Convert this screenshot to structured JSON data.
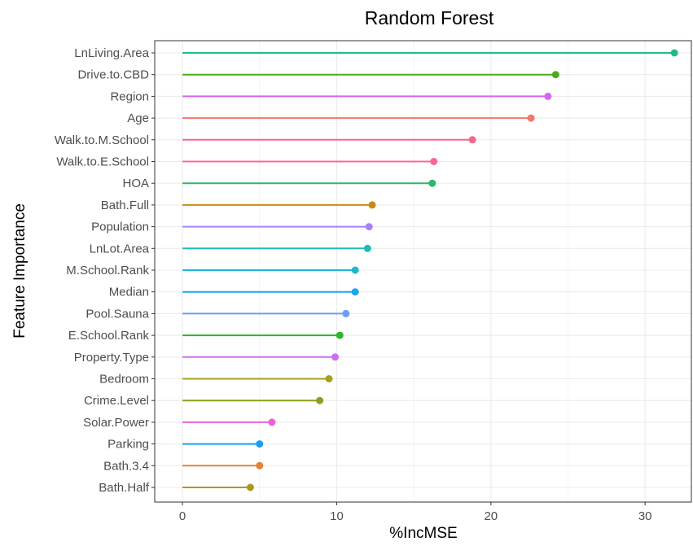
{
  "chart_data": {
    "type": "lollipop",
    "title": "Random Forest",
    "xlabel": "%IncMSE",
    "ylabel": "Feature Importance",
    "xlim": [
      -1.8,
      33.0
    ],
    "xticks": [
      0,
      10,
      20,
      30
    ],
    "grid": true,
    "legend": "none",
    "categories": [
      "LnLiving.Area",
      "Drive.to.CBD",
      "Region",
      "Age",
      "Walk.to.M.School",
      "Walk.to.E.School",
      "HOA",
      "Bath.Full",
      "Population",
      "LnLot.Area",
      "M.School.Rank",
      "Median",
      "Pool.Sauna",
      "E.School.Rank",
      "Property.Type",
      "Bedroom",
      "Crime.Level",
      "Solar.Power",
      "Parking",
      "Bath.3.4",
      "Bath.Half"
    ],
    "values": [
      31.9,
      24.2,
      23.7,
      22.6,
      18.8,
      16.3,
      16.2,
      12.3,
      12.1,
      12.0,
      11.2,
      11.2,
      10.6,
      10.2,
      9.9,
      9.5,
      8.9,
      5.8,
      5.0,
      5.0,
      4.4
    ],
    "colors": [
      "#1fba8a",
      "#4bac1c",
      "#d764f2",
      "#f5766d",
      "#f7658e",
      "#f8659f",
      "#2bb868",
      "#c98a13",
      "#a383ff",
      "#1bbdb7",
      "#1bb8ce",
      "#1ba7f0",
      "#6c9df7",
      "#2cb52e",
      "#cc6ef2",
      "#a5a11d",
      "#919d18",
      "#ef61d8",
      "#1b9ef2",
      "#e48134",
      "#b0971a"
    ]
  }
}
